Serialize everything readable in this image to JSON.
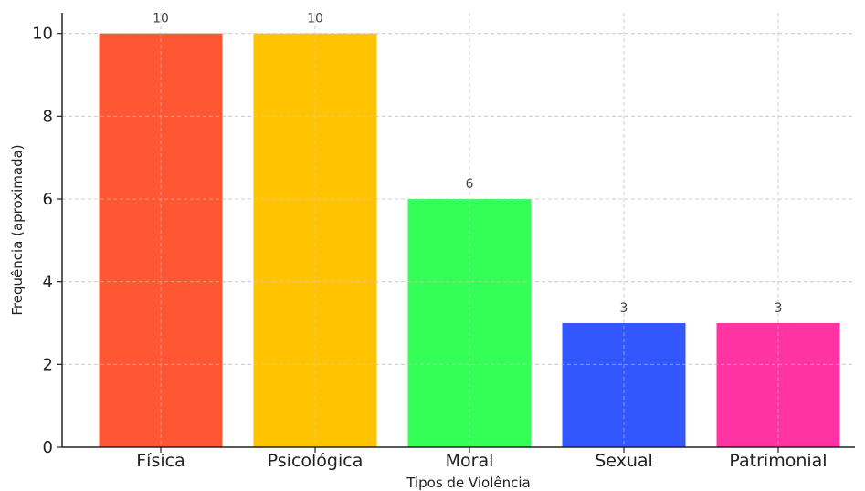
{
  "chart_data": {
    "type": "bar",
    "title": "",
    "xlabel": "Tipos de Violência",
    "ylabel": "Frequência (aproximada)",
    "categories": [
      "Física",
      "Psicológica",
      "Moral",
      "Sexual",
      "Patrimonial"
    ],
    "values": [
      10,
      10,
      6,
      3,
      3
    ],
    "data_labels": [
      "10",
      "10",
      "6",
      "3",
      "3"
    ],
    "colors": [
      "#ff5733",
      "#ffc300",
      "#33ff57",
      "#3357ff",
      "#ff33a1"
    ],
    "ylim": [
      0,
      10.5
    ],
    "yticks": [
      0,
      2,
      4,
      6,
      8,
      10
    ],
    "grid": true,
    "legend": "none"
  }
}
